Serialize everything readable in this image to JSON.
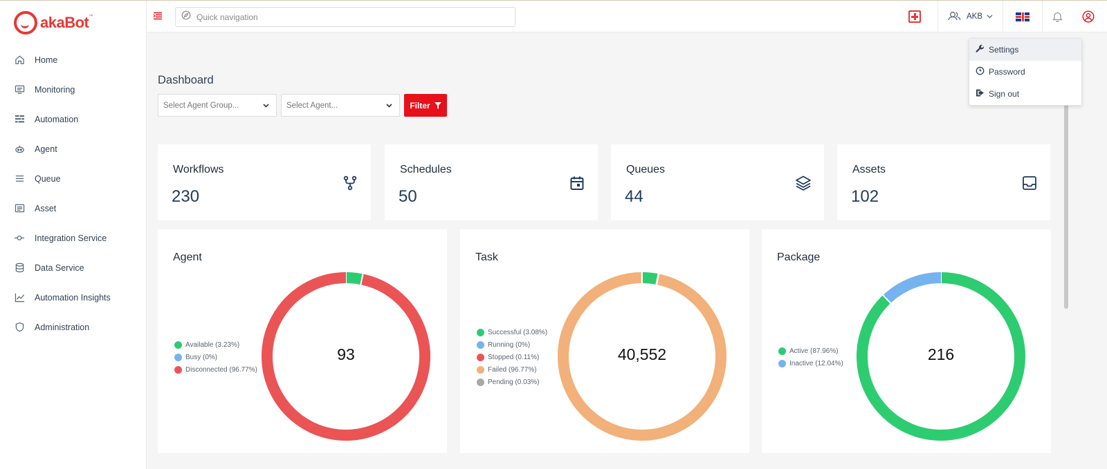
{
  "brand": {
    "name_prefix": "aka",
    "name_suffix": "Bot",
    "trademark": "™"
  },
  "sidebar": {
    "items": [
      {
        "label": "Home",
        "icon": "home-icon"
      },
      {
        "label": "Monitoring",
        "icon": "monitor-icon"
      },
      {
        "label": "Automation",
        "icon": "automation-icon"
      },
      {
        "label": "Agent",
        "icon": "agent-icon"
      },
      {
        "label": "Queue",
        "icon": "queue-icon"
      },
      {
        "label": "Asset",
        "icon": "asset-icon"
      },
      {
        "label": "Integration Service",
        "icon": "integration-icon"
      },
      {
        "label": "Data Service",
        "icon": "database-icon"
      },
      {
        "label": "Automation Insights",
        "icon": "chart-icon"
      },
      {
        "label": "Administration",
        "icon": "shield-icon"
      }
    ]
  },
  "topbar": {
    "search_placeholder": "Quick navigation",
    "user_label": "AKB"
  },
  "user_menu": {
    "items": [
      "Settings",
      "Password",
      "Sign out"
    ]
  },
  "dashboard": {
    "title": "Dashboard",
    "agent_group_placeholder": "Select Agent Group...",
    "agent_placeholder": "Select Agent...",
    "filter_label": "Filter"
  },
  "stats": [
    {
      "title": "Workflows",
      "value": "230",
      "icon": "workflow-icon"
    },
    {
      "title": "Schedules",
      "value": "50",
      "icon": "calendar-icon"
    },
    {
      "title": "Queues",
      "value": "44",
      "icon": "layers-icon"
    },
    {
      "title": "Assets",
      "value": "102",
      "icon": "inbox-icon"
    }
  ],
  "colors": {
    "accent": "#e8101b",
    "green": "#2ecc71",
    "blue": "#74b3ef",
    "red": "#ea5455",
    "orange": "#f2b07a",
    "gray": "#a8a8a8"
  },
  "chart_data": [
    {
      "type": "pie",
      "title": "Agent",
      "total_label": "93",
      "slices": [
        {
          "label": "Available (3.23%)",
          "value": 3.23,
          "color": "#2ecc71"
        },
        {
          "label": "Busy (0%)",
          "value": 0,
          "color": "#74b3ef"
        },
        {
          "label": "Disconnected (96.77%)",
          "value": 96.77,
          "color": "#ea5455"
        }
      ]
    },
    {
      "type": "pie",
      "title": "Task",
      "total_label": "40,552",
      "slices": [
        {
          "label": "Successful (3.08%)",
          "value": 3.08,
          "color": "#2ecc71"
        },
        {
          "label": "Running (0%)",
          "value": 0,
          "color": "#74b3ef"
        },
        {
          "label": "Stopped (0.11%)",
          "value": 0.11,
          "color": "#ea5455"
        },
        {
          "label": "Failed (96.77%)",
          "value": 96.77,
          "color": "#f2b07a"
        },
        {
          "label": "Pending (0.03%)",
          "value": 0.03,
          "color": "#a8a8a8"
        }
      ]
    },
    {
      "type": "pie",
      "title": "Package",
      "total_label": "216",
      "slices": [
        {
          "label": "Active (87.96%)",
          "value": 87.96,
          "color": "#2ecc71"
        },
        {
          "label": "Inactive (12.04%)",
          "value": 12.04,
          "color": "#74b3ef"
        }
      ]
    }
  ]
}
